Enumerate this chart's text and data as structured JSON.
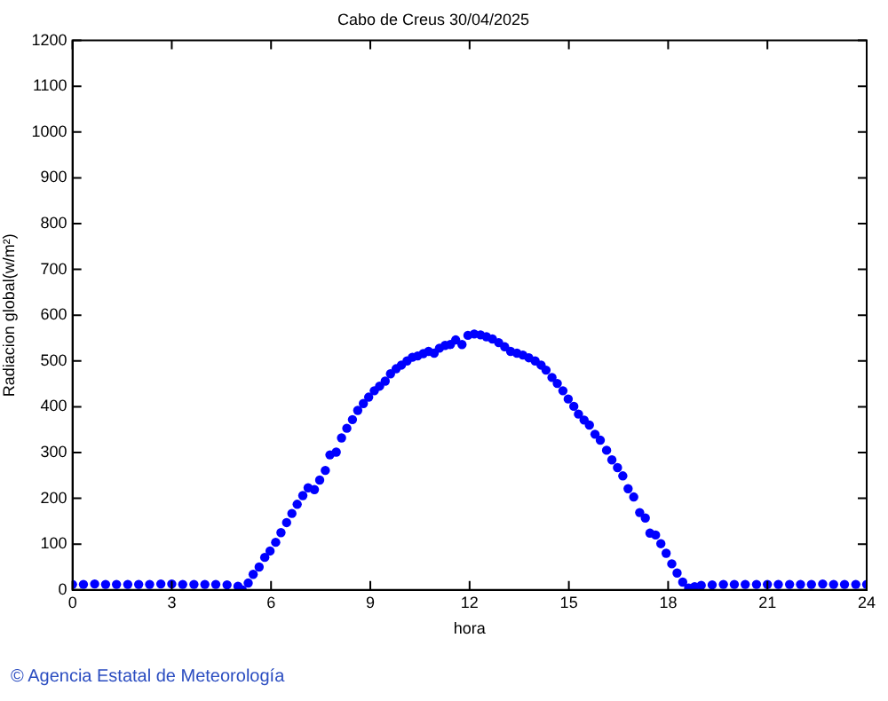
{
  "chart_data": {
    "type": "scatter",
    "title": "Cabo de Creus 30/04/2025",
    "xlabel": "hora",
    "ylabel": "Radiacion global(w/m²)",
    "annotations": [
      "© Agencia Estatal de Meteorología"
    ],
    "xlim": [
      0,
      24
    ],
    "xticks": [
      0,
      3,
      6,
      9,
      12,
      15,
      18,
      21,
      24
    ],
    "ylim": [
      0,
      1200
    ],
    "yticks": [
      0,
      100,
      200,
      300,
      400,
      500,
      600,
      700,
      800,
      900,
      1000,
      1100,
      1200
    ],
    "grid": false,
    "legend": false,
    "marker": "circle",
    "series": [
      {
        "color": "#0000ff",
        "x": [
          0,
          0.33,
          0.67,
          1,
          1.33,
          1.67,
          2,
          2.33,
          2.67,
          3,
          3.33,
          3.67,
          4,
          4.33,
          4.67,
          5.0,
          5.13,
          5.31,
          5.46,
          5.64,
          5.81,
          5.97,
          6.14,
          6.3,
          6.47,
          6.63,
          6.79,
          6.96,
          7.12,
          7.31,
          7.47,
          7.64,
          7.78,
          7.97,
          8.13,
          8.29,
          8.46,
          8.62,
          8.79,
          8.95,
          9.12,
          9.28,
          9.45,
          9.61,
          9.78,
          9.94,
          10.11,
          10.27,
          10.43,
          10.6,
          10.76,
          10.93,
          11.09,
          11.26,
          11.42,
          11.58,
          11.77,
          11.95,
          12.14,
          12.33,
          12.51,
          12.69,
          12.88,
          13.06,
          13.24,
          13.43,
          13.61,
          13.79,
          13.98,
          14.16,
          14.31,
          14.49,
          14.65,
          14.82,
          14.98,
          15.15,
          15.29,
          15.46,
          15.62,
          15.79,
          15.95,
          16.14,
          16.3,
          16.47,
          16.63,
          16.79,
          16.96,
          17.14,
          17.31,
          17.45,
          17.62,
          17.78,
          17.94,
          18.11,
          18.27,
          18.44,
          18.62,
          18.8,
          19.0,
          19.33,
          19.67,
          20,
          20.33,
          20.67,
          21,
          21.33,
          21.67,
          22,
          22.33,
          22.67,
          23,
          23.33,
          23.67,
          24
        ],
        "values": [
          12,
          12,
          13,
          12,
          12,
          12,
          12,
          12,
          13,
          13,
          12,
          12,
          12,
          12,
          11,
          8,
          0,
          15,
          34,
          50,
          71,
          85,
          104,
          125,
          147,
          167,
          187,
          206,
          223,
          219,
          240,
          261,
          295,
          301,
          332,
          353,
          372,
          392,
          407,
          421,
          435,
          445,
          456,
          472,
          483,
          491,
          500,
          508,
          511,
          516,
          521,
          517,
          528,
          534,
          536,
          546,
          536,
          556,
          559,
          557,
          553,
          548,
          540,
          531,
          521,
          517,
          513,
          507,
          500,
          491,
          480,
          464,
          451,
          435,
          417,
          401,
          384,
          371,
          360,
          340,
          327,
          305,
          284,
          267,
          249,
          221,
          203,
          169,
          157,
          124,
          120,
          101,
          80,
          57,
          37,
          17,
          4,
          7,
          10,
          11,
          12,
          12,
          12,
          12,
          12,
          12,
          12,
          12,
          12,
          13,
          12,
          12,
          12,
          12
        ]
      }
    ]
  }
}
